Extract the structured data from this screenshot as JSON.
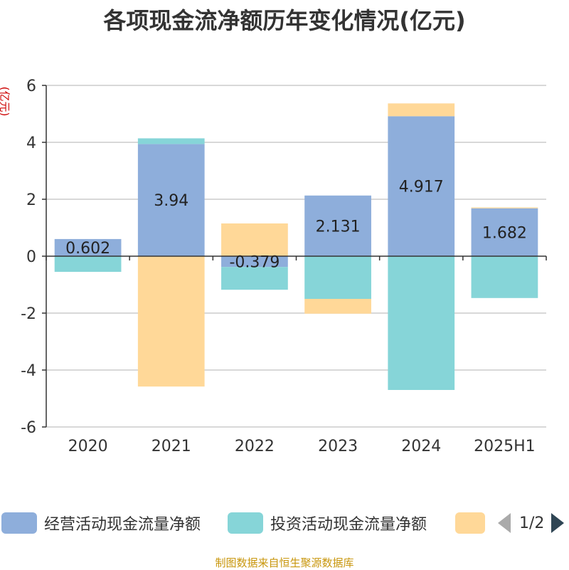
{
  "title": "各项现金流净额历年变化情况(亿元)",
  "unit_label": "(亿元)",
  "source": "制图数据来自恒生聚源数据库",
  "legend": {
    "items": [
      {
        "label": "经营活动现金流量净额",
        "color": "#8eaedb"
      },
      {
        "label": "投资活动现金流量净额",
        "color": "#86d5d8"
      },
      {
        "label": "",
        "color": "#ffd898"
      }
    ],
    "page_text": "1/2"
  },
  "chart_data": {
    "type": "bar",
    "stacked": true,
    "categories": [
      "2020",
      "2021",
      "2022",
      "2023",
      "2024",
      "2025H1"
    ],
    "ylim": [
      -6,
      6
    ],
    "yticks": [
      6,
      4,
      2,
      0,
      -2,
      -4,
      -6
    ],
    "grid": true,
    "legend_position": "bottom",
    "series": [
      {
        "name": "经营活动现金流量净额",
        "color": "#8eaedb",
        "values": [
          0.602,
          3.94,
          -0.379,
          2.131,
          4.917,
          1.682
        ],
        "labels": [
          "0.602",
          "3.94",
          "-0.379",
          "2.131",
          "4.917",
          "1.682"
        ]
      },
      {
        "name": "投资活动现金流量净额",
        "color": "#86d5d8",
        "values": [
          -0.55,
          0.2,
          -0.8,
          -1.5,
          -4.7,
          -1.47
        ]
      },
      {
        "color": "#ffd898",
        "values": [
          0.0,
          -4.58,
          1.15,
          -0.52,
          0.45,
          0.03
        ]
      }
    ]
  }
}
